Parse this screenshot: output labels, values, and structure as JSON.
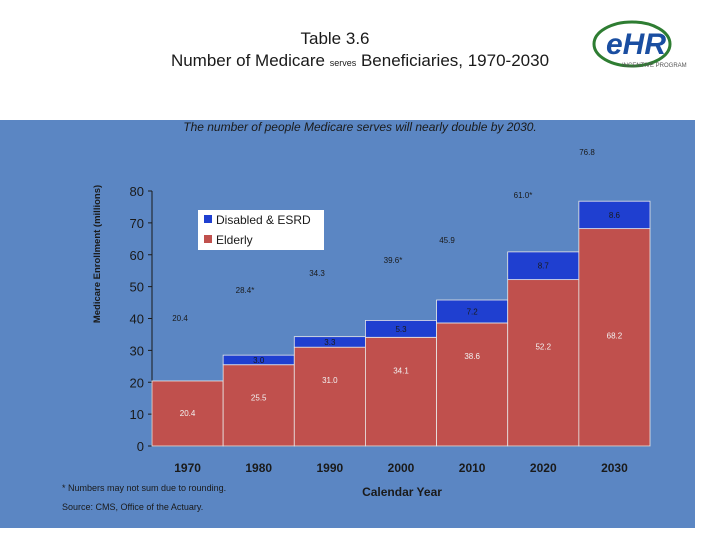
{
  "header": {
    "title_line1": "Table 3.6",
    "title_line2_pre": "Number of Medicare",
    "title_line2_small": "serves",
    "title_line2_post": "Beneficiaries, 1970-2030"
  },
  "logo": {
    "text": "eHR",
    "tagline": "INCENTIVE PROGRAM"
  },
  "chart_data": {
    "type": "bar",
    "stacked": true,
    "title": "The number of people Medicare serves will nearly double by 2030.",
    "xlabel": "Calendar Year",
    "ylabel": "Medicare Enrollment (millions)",
    "ylim": [
      0,
      80
    ],
    "yticks": [
      0,
      10,
      20,
      30,
      40,
      50,
      60,
      70,
      80
    ],
    "categories": [
      "1970",
      "1980",
      "1990",
      "2000",
      "2010",
      "2020",
      "2030"
    ],
    "series": [
      {
        "name": "Elderly",
        "color": "#c0504d",
        "values": [
          20.4,
          25.5,
          31.0,
          34.1,
          38.6,
          52.2,
          68.2
        ],
        "labels": [
          "20.4",
          "25.5",
          "31.0",
          "34.1",
          "38.6",
          "52.2",
          "68.2"
        ]
      },
      {
        "name": "Disabled & ESRD",
        "color": "#1f3fd0",
        "values": [
          0,
          3.0,
          3.3,
          5.3,
          7.2,
          8.7,
          8.6
        ],
        "labels": [
          "",
          "3.0",
          "3.3",
          "5.3",
          "7.2",
          "8.7",
          "8.6"
        ]
      }
    ],
    "totals": [
      "20.4",
      "28.4*",
      "34.3",
      "39.6*",
      "45.9",
      "61.0*",
      "76.8"
    ],
    "legend": [
      "Disabled & ESRD",
      "Elderly"
    ],
    "legend_position": "top-left"
  },
  "footnotes": {
    "note": "* Numbers may not sum due to rounding.",
    "source": "Source:  CMS, Office of the Actuary."
  }
}
